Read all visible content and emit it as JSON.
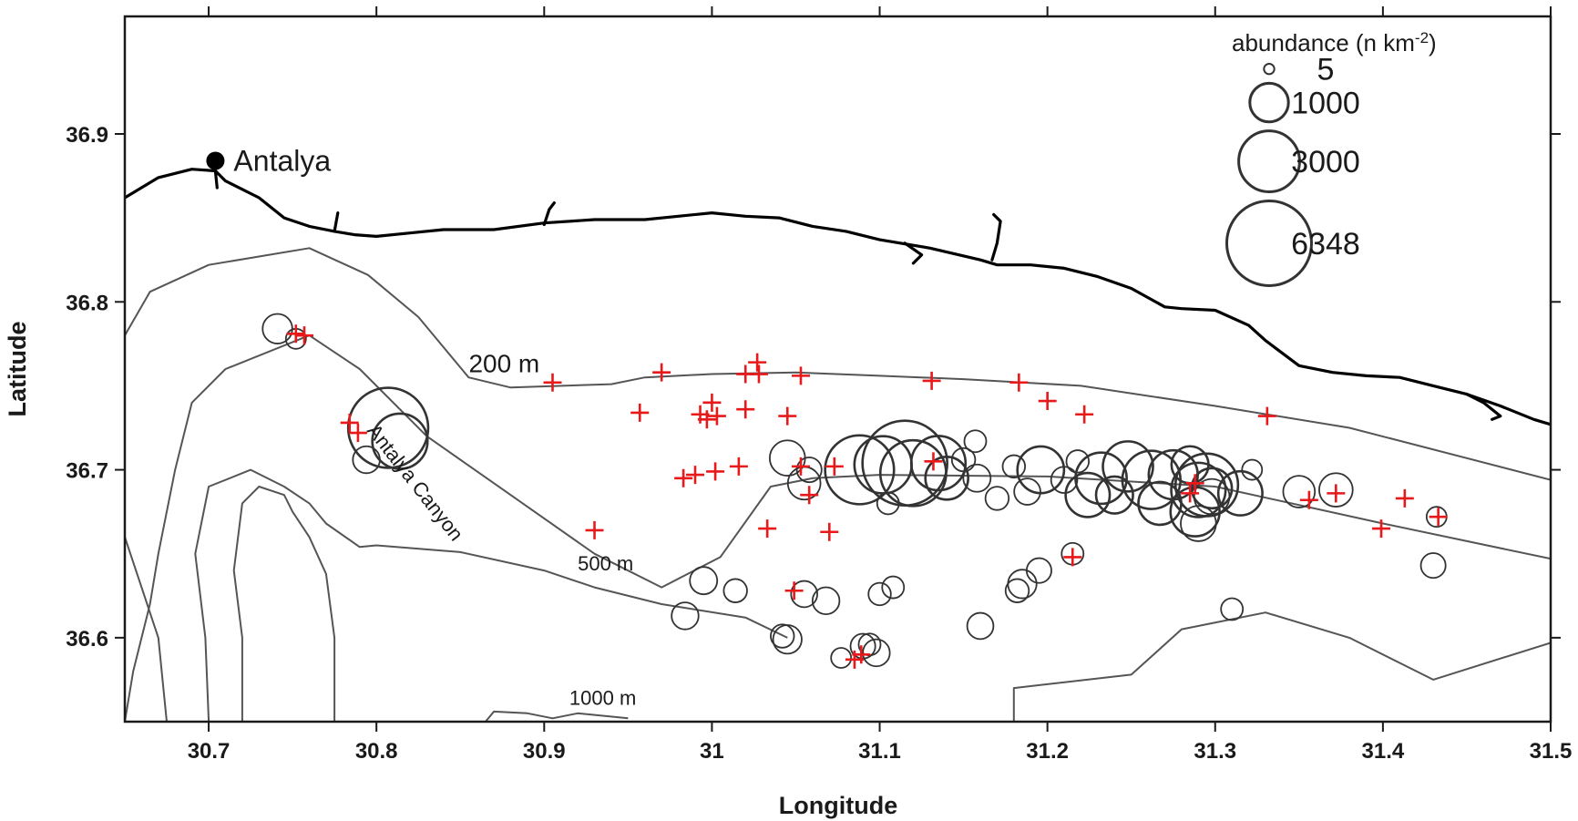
{
  "chart_data": {
    "type": "scatter",
    "xlabel": "Longitude",
    "ylabel": "Latitude",
    "xlim": [
      30.65,
      31.5
    ],
    "ylim": [
      36.55,
      36.97
    ],
    "x_ticks": [
      {
        "value": 30.7,
        "label": "30.7"
      },
      {
        "value": 30.8,
        "label": "30.8"
      },
      {
        "value": 30.9,
        "label": "30.9"
      },
      {
        "value": 31.0,
        "label": "31"
      },
      {
        "value": 31.1,
        "label": "31.1"
      },
      {
        "value": 31.2,
        "label": "31.2"
      },
      {
        "value": 31.3,
        "label": "31.3"
      },
      {
        "value": 31.4,
        "label": "31.4"
      },
      {
        "value": 31.5,
        "label": "31.5"
      }
    ],
    "y_ticks": [
      {
        "value": 36.6,
        "label": "36.6"
      },
      {
        "value": 36.7,
        "label": "36.7"
      },
      {
        "value": 36.8,
        "label": "36.8"
      },
      {
        "value": 36.9,
        "label": "36.9"
      }
    ],
    "grid": false,
    "city": {
      "name": "Antalya",
      "lon": 30.704,
      "lat": 36.884
    },
    "canyon_label": {
      "text": "Antalya Canyon",
      "lon": 30.82,
      "lat": 36.69
    },
    "coastline": [
      [
        30.65,
        36.862
      ],
      [
        30.67,
        36.874
      ],
      [
        30.69,
        36.879
      ],
      [
        30.704,
        36.878
      ],
      [
        30.71,
        36.872
      ],
      [
        30.73,
        36.862
      ],
      [
        30.745,
        36.85
      ],
      [
        30.76,
        36.845
      ],
      [
        30.775,
        36.842
      ],
      [
        30.787,
        36.84
      ],
      [
        30.8,
        36.839
      ],
      [
        30.82,
        36.841
      ],
      [
        30.84,
        36.843
      ],
      [
        30.87,
        36.843
      ],
      [
        30.9,
        36.847
      ],
      [
        30.93,
        36.849
      ],
      [
        30.96,
        36.849
      ],
      [
        30.98,
        36.851
      ],
      [
        31.0,
        36.853
      ],
      [
        31.02,
        36.851
      ],
      [
        31.04,
        36.85
      ],
      [
        31.06,
        36.845
      ],
      [
        31.08,
        36.842
      ],
      [
        31.1,
        36.837
      ],
      [
        31.13,
        36.832
      ],
      [
        31.16,
        36.825
      ],
      [
        31.17,
        36.822
      ],
      [
        31.19,
        36.822
      ],
      [
        31.21,
        36.82
      ],
      [
        31.23,
        36.815
      ],
      [
        31.25,
        36.808
      ],
      [
        31.27,
        36.797
      ],
      [
        31.28,
        36.796
      ],
      [
        31.3,
        36.795
      ],
      [
        31.32,
        36.786
      ],
      [
        31.33,
        36.777
      ],
      [
        31.35,
        36.762
      ],
      [
        31.37,
        36.758
      ],
      [
        31.39,
        36.756
      ],
      [
        31.41,
        36.755
      ],
      [
        31.43,
        36.75
      ],
      [
        31.45,
        36.745
      ],
      [
        31.47,
        36.738
      ],
      [
        31.49,
        36.73
      ],
      [
        31.5,
        36.727
      ]
    ],
    "coastline_features": [
      [
        [
          30.704,
          36.878
        ],
        [
          30.705,
          36.868
        ]
      ],
      [
        [
          30.775,
          36.842
        ],
        [
          30.777,
          36.853
        ]
      ],
      [
        [
          30.9,
          36.846
        ],
        [
          30.903,
          36.855
        ],
        [
          30.906,
          36.859
        ]
      ],
      [
        [
          31.115,
          36.835
        ],
        [
          31.125,
          36.828
        ],
        [
          31.12,
          36.823
        ]
      ],
      [
        [
          31.167,
          36.825
        ],
        [
          31.17,
          36.835
        ],
        [
          31.172,
          36.848
        ],
        [
          31.168,
          36.852
        ]
      ],
      [
        [
          31.45,
          36.745
        ],
        [
          31.46,
          36.74
        ],
        [
          31.47,
          36.732
        ],
        [
          31.465,
          36.73
        ]
      ]
    ],
    "contours": [
      {
        "label": "200 m",
        "points": [
          [
            30.65,
            36.78
          ],
          [
            30.665,
            36.806
          ],
          [
            30.7,
            36.822
          ],
          [
            30.76,
            36.832
          ],
          [
            30.795,
            36.816
          ],
          [
            30.825,
            36.791
          ],
          [
            30.855,
            36.755
          ],
          [
            30.88,
            36.749
          ],
          [
            30.94,
            36.751
          ],
          [
            30.96,
            36.755
          ],
          [
            31.0,
            36.757
          ],
          [
            31.05,
            36.758
          ],
          [
            31.1,
            36.756
          ],
          [
            31.15,
            36.754
          ],
          [
            31.22,
            36.75
          ],
          [
            31.3,
            36.738
          ],
          [
            31.38,
            36.725
          ],
          [
            31.5,
            36.694
          ]
        ]
      },
      {
        "label": "500 m",
        "points": [
          [
            30.65,
            36.55
          ],
          [
            30.655,
            36.58
          ],
          [
            30.665,
            36.62
          ],
          [
            30.67,
            36.65
          ],
          [
            30.68,
            36.7
          ],
          [
            30.69,
            36.74
          ],
          [
            30.71,
            36.76
          ],
          [
            30.76,
            36.78
          ],
          [
            30.79,
            36.76
          ],
          [
            30.83,
            36.72
          ],
          [
            30.88,
            36.685
          ],
          [
            30.93,
            36.65
          ],
          [
            30.97,
            36.63
          ],
          [
            31.005,
            36.648
          ],
          [
            31.035,
            36.69
          ],
          [
            31.06,
            36.695
          ],
          [
            31.1,
            36.697
          ],
          [
            31.2,
            36.696
          ],
          [
            31.3,
            36.69
          ],
          [
            31.4,
            36.668
          ],
          [
            31.5,
            36.647
          ]
        ]
      },
      {
        "label": "1000 m",
        "points": [
          [
            30.65,
            36.66
          ],
          [
            30.66,
            36.63
          ],
          [
            30.67,
            36.6
          ],
          [
            30.675,
            36.55
          ]
        ]
      },
      {
        "label": "",
        "points": [
          [
            30.7,
            36.55
          ],
          [
            30.698,
            36.6
          ],
          [
            30.692,
            36.65
          ],
          [
            30.7,
            36.69
          ],
          [
            30.725,
            36.7
          ],
          [
            30.745,
            36.69
          ],
          [
            30.76,
            36.68
          ],
          [
            30.77,
            36.668
          ],
          [
            30.79,
            36.654
          ],
          [
            30.8,
            36.655
          ],
          [
            30.85,
            36.651
          ],
          [
            30.9,
            36.64
          ],
          [
            30.93,
            36.63
          ],
          [
            30.97,
            36.62
          ],
          [
            31.02,
            36.612
          ],
          [
            31.045,
            36.6
          ]
        ]
      },
      {
        "label": "",
        "points": [
          [
            30.72,
            36.55
          ],
          [
            30.72,
            36.6
          ],
          [
            30.715,
            36.64
          ],
          [
            30.72,
            36.68
          ],
          [
            30.73,
            36.69
          ],
          [
            30.745,
            36.685
          ],
          [
            30.75,
            36.675
          ],
          [
            30.76,
            36.66
          ],
          [
            30.77,
            36.638
          ],
          [
            30.775,
            36.6
          ],
          [
            30.775,
            36.55
          ]
        ]
      },
      {
        "label": "",
        "points": [
          [
            30.865,
            36.55
          ],
          [
            30.87,
            36.556
          ],
          [
            30.89,
            36.555
          ],
          [
            30.905,
            36.552
          ],
          [
            30.92,
            36.555
          ],
          [
            30.95,
            36.552
          ]
        ]
      },
      {
        "label": "",
        "points": [
          [
            31.18,
            36.55
          ],
          [
            31.18,
            36.57
          ],
          [
            31.25,
            36.578
          ],
          [
            31.28,
            36.605
          ],
          [
            31.33,
            36.615
          ],
          [
            31.38,
            36.6
          ],
          [
            31.43,
            36.575
          ],
          [
            31.5,
            36.597
          ]
        ]
      }
    ],
    "contour_labels": [
      {
        "text": "200 m",
        "lon": 30.855,
        "lat": 36.758,
        "size": "big"
      },
      {
        "text": "500 m",
        "lon": 30.92,
        "lat": 36.64,
        "size": "small"
      },
      {
        "text": "1000 m",
        "lon": 30.915,
        "lat": 36.56,
        "size": "small"
      }
    ],
    "abundance_stations": [
      {
        "lon": 30.741,
        "lat": 36.784,
        "n": 500
      },
      {
        "lon": 30.752,
        "lat": 36.778,
        "n": 150
      },
      {
        "lon": 30.807,
        "lat": 36.725,
        "n": 5600
      },
      {
        "lon": 30.814,
        "lat": 36.717,
        "n": 2400
      },
      {
        "lon": 30.794,
        "lat": 36.706,
        "n": 380
      },
      {
        "lon": 31.045,
        "lat": 36.707,
        "n": 800
      },
      {
        "lon": 31.055,
        "lat": 36.692,
        "n": 650
      },
      {
        "lon": 31.088,
        "lat": 36.7,
        "n": 4000
      },
      {
        "lon": 31.102,
        "lat": 36.703,
        "n": 2600
      },
      {
        "lon": 31.115,
        "lat": 36.704,
        "n": 6348
      },
      {
        "lon": 31.12,
        "lat": 36.698,
        "n": 3600
      },
      {
        "lon": 31.135,
        "lat": 36.704,
        "n": 2300
      },
      {
        "lon": 31.14,
        "lat": 36.695,
        "n": 1300
      },
      {
        "lon": 31.15,
        "lat": 36.706,
        "n": 250
      },
      {
        "lon": 31.157,
        "lat": 36.717,
        "n": 200
      },
      {
        "lon": 31.17,
        "lat": 36.683,
        "n": 250
      },
      {
        "lon": 31.158,
        "lat": 36.695,
        "n": 400
      },
      {
        "lon": 31.18,
        "lat": 36.702,
        "n": 220
      },
      {
        "lon": 31.196,
        "lat": 36.7,
        "n": 1600
      },
      {
        "lon": 31.188,
        "lat": 36.687,
        "n": 350
      },
      {
        "lon": 31.218,
        "lat": 36.705,
        "n": 220
      },
      {
        "lon": 31.224,
        "lat": 36.685,
        "n": 1400
      },
      {
        "lon": 31.232,
        "lat": 36.695,
        "n": 2000
      },
      {
        "lon": 31.24,
        "lat": 36.685,
        "n": 900
      },
      {
        "lon": 31.248,
        "lat": 36.702,
        "n": 1900
      },
      {
        "lon": 31.262,
        "lat": 36.694,
        "n": 2700
      },
      {
        "lon": 31.267,
        "lat": 36.68,
        "n": 1300
      },
      {
        "lon": 31.275,
        "lat": 36.697,
        "n": 1800
      },
      {
        "lon": 31.285,
        "lat": 36.703,
        "n": 900
      },
      {
        "lon": 31.29,
        "lat": 36.688,
        "n": 2300
      },
      {
        "lon": 31.295,
        "lat": 36.691,
        "n": 3200
      },
      {
        "lon": 31.298,
        "lat": 36.689,
        "n": 1100
      },
      {
        "lon": 31.288,
        "lat": 36.675,
        "n": 1800
      },
      {
        "lon": 31.298,
        "lat": 36.684,
        "n": 800
      },
      {
        "lon": 31.29,
        "lat": 36.668,
        "n": 800
      },
      {
        "lon": 31.315,
        "lat": 36.686,
        "n": 1400
      },
      {
        "lon": 31.322,
        "lat": 36.7,
        "n": 150
      },
      {
        "lon": 31.35,
        "lat": 36.687,
        "n": 600
      },
      {
        "lon": 31.372,
        "lat": 36.688,
        "n": 700
      },
      {
        "lon": 31.43,
        "lat": 36.643,
        "n": 300
      },
      {
        "lon": 31.432,
        "lat": 36.672,
        "n": 150
      },
      {
        "lon": 31.21,
        "lat": 36.694,
        "n": 350
      },
      {
        "lon": 31.215,
        "lat": 36.65,
        "n": 200
      },
      {
        "lon": 31.185,
        "lat": 36.632,
        "n": 450
      },
      {
        "lon": 31.195,
        "lat": 36.64,
        "n": 300
      },
      {
        "lon": 31.182,
        "lat": 36.628,
        "n": 250
      },
      {
        "lon": 31.16,
        "lat": 36.607,
        "n": 350
      },
      {
        "lon": 31.31,
        "lat": 36.617,
        "n": 200
      },
      {
        "lon": 31.108,
        "lat": 36.63,
        "n": 200
      },
      {
        "lon": 31.1,
        "lat": 36.626,
        "n": 220
      },
      {
        "lon": 31.105,
        "lat": 36.68,
        "n": 200
      },
      {
        "lon": 31.094,
        "lat": 36.596,
        "n": 200
      },
      {
        "lon": 31.098,
        "lat": 36.591,
        "n": 380
      },
      {
        "lon": 31.09,
        "lat": 36.595,
        "n": 300
      },
      {
        "lon": 31.077,
        "lat": 36.588,
        "n": 150
      },
      {
        "lon": 31.045,
        "lat": 36.599,
        "n": 450
      },
      {
        "lon": 31.055,
        "lat": 36.626,
        "n": 350
      },
      {
        "lon": 31.068,
        "lat": 36.622,
        "n": 380
      },
      {
        "lon": 30.995,
        "lat": 36.634,
        "n": 400
      },
      {
        "lon": 31.014,
        "lat": 36.628,
        "n": 250
      },
      {
        "lon": 30.984,
        "lat": 36.613,
        "n": 380
      },
      {
        "lon": 31.058,
        "lat": 36.7,
        "n": 300
      },
      {
        "lon": 31.042,
        "lat": 36.601,
        "n": 250
      }
    ],
    "zero_stations": [
      [
        30.752,
        36.781
      ],
      [
        30.757,
        36.78
      ],
      [
        30.784,
        36.728
      ],
      [
        30.789,
        36.722
      ],
      [
        30.905,
        36.752
      ],
      [
        30.93,
        36.664
      ],
      [
        30.957,
        36.734
      ],
      [
        30.97,
        36.758
      ],
      [
        30.983,
        36.695
      ],
      [
        30.99,
        36.697
      ],
      [
        30.993,
        36.733
      ],
      [
        30.997,
        36.73
      ],
      [
        31.0,
        36.74
      ],
      [
        31.003,
        36.732
      ],
      [
        31.002,
        36.699
      ],
      [
        31.016,
        36.702
      ],
      [
        31.02,
        36.757
      ],
      [
        31.02,
        36.736
      ],
      [
        31.027,
        36.764
      ],
      [
        31.028,
        36.757
      ],
      [
        31.033,
        36.665
      ],
      [
        31.045,
        36.732
      ],
      [
        31.049,
        36.628
      ],
      [
        31.053,
        36.756
      ],
      [
        31.053,
        36.702
      ],
      [
        31.058,
        36.685
      ],
      [
        31.07,
        36.663
      ],
      [
        31.073,
        36.702
      ],
      [
        31.085,
        36.587
      ],
      [
        31.089,
        36.59
      ],
      [
        31.131,
        36.753
      ],
      [
        31.132,
        36.705
      ],
      [
        31.183,
        36.752
      ],
      [
        31.2,
        36.741
      ],
      [
        31.215,
        36.648
      ],
      [
        31.222,
        36.733
      ],
      [
        31.285,
        36.686
      ],
      [
        31.288,
        36.692
      ],
      [
        31.331,
        36.732
      ],
      [
        31.356,
        36.682
      ],
      [
        31.372,
        36.686
      ],
      [
        31.399,
        36.665
      ],
      [
        31.413,
        36.683
      ],
      [
        31.433,
        36.672
      ]
    ],
    "legend": {
      "title_main": "abundance (n km",
      "title_sup": "-2",
      "title_end": ")",
      "entries": [
        {
          "n": 5,
          "label": "5"
        },
        {
          "n": 1000,
          "label": "1000"
        },
        {
          "n": 3000,
          "label": "3000"
        },
        {
          "n": 6348,
          "label": "6348"
        }
      ]
    },
    "colors": {
      "coastline": "#000000",
      "contour": "#555555",
      "circle": "#333333",
      "zero_marker": "#e8191a"
    }
  }
}
